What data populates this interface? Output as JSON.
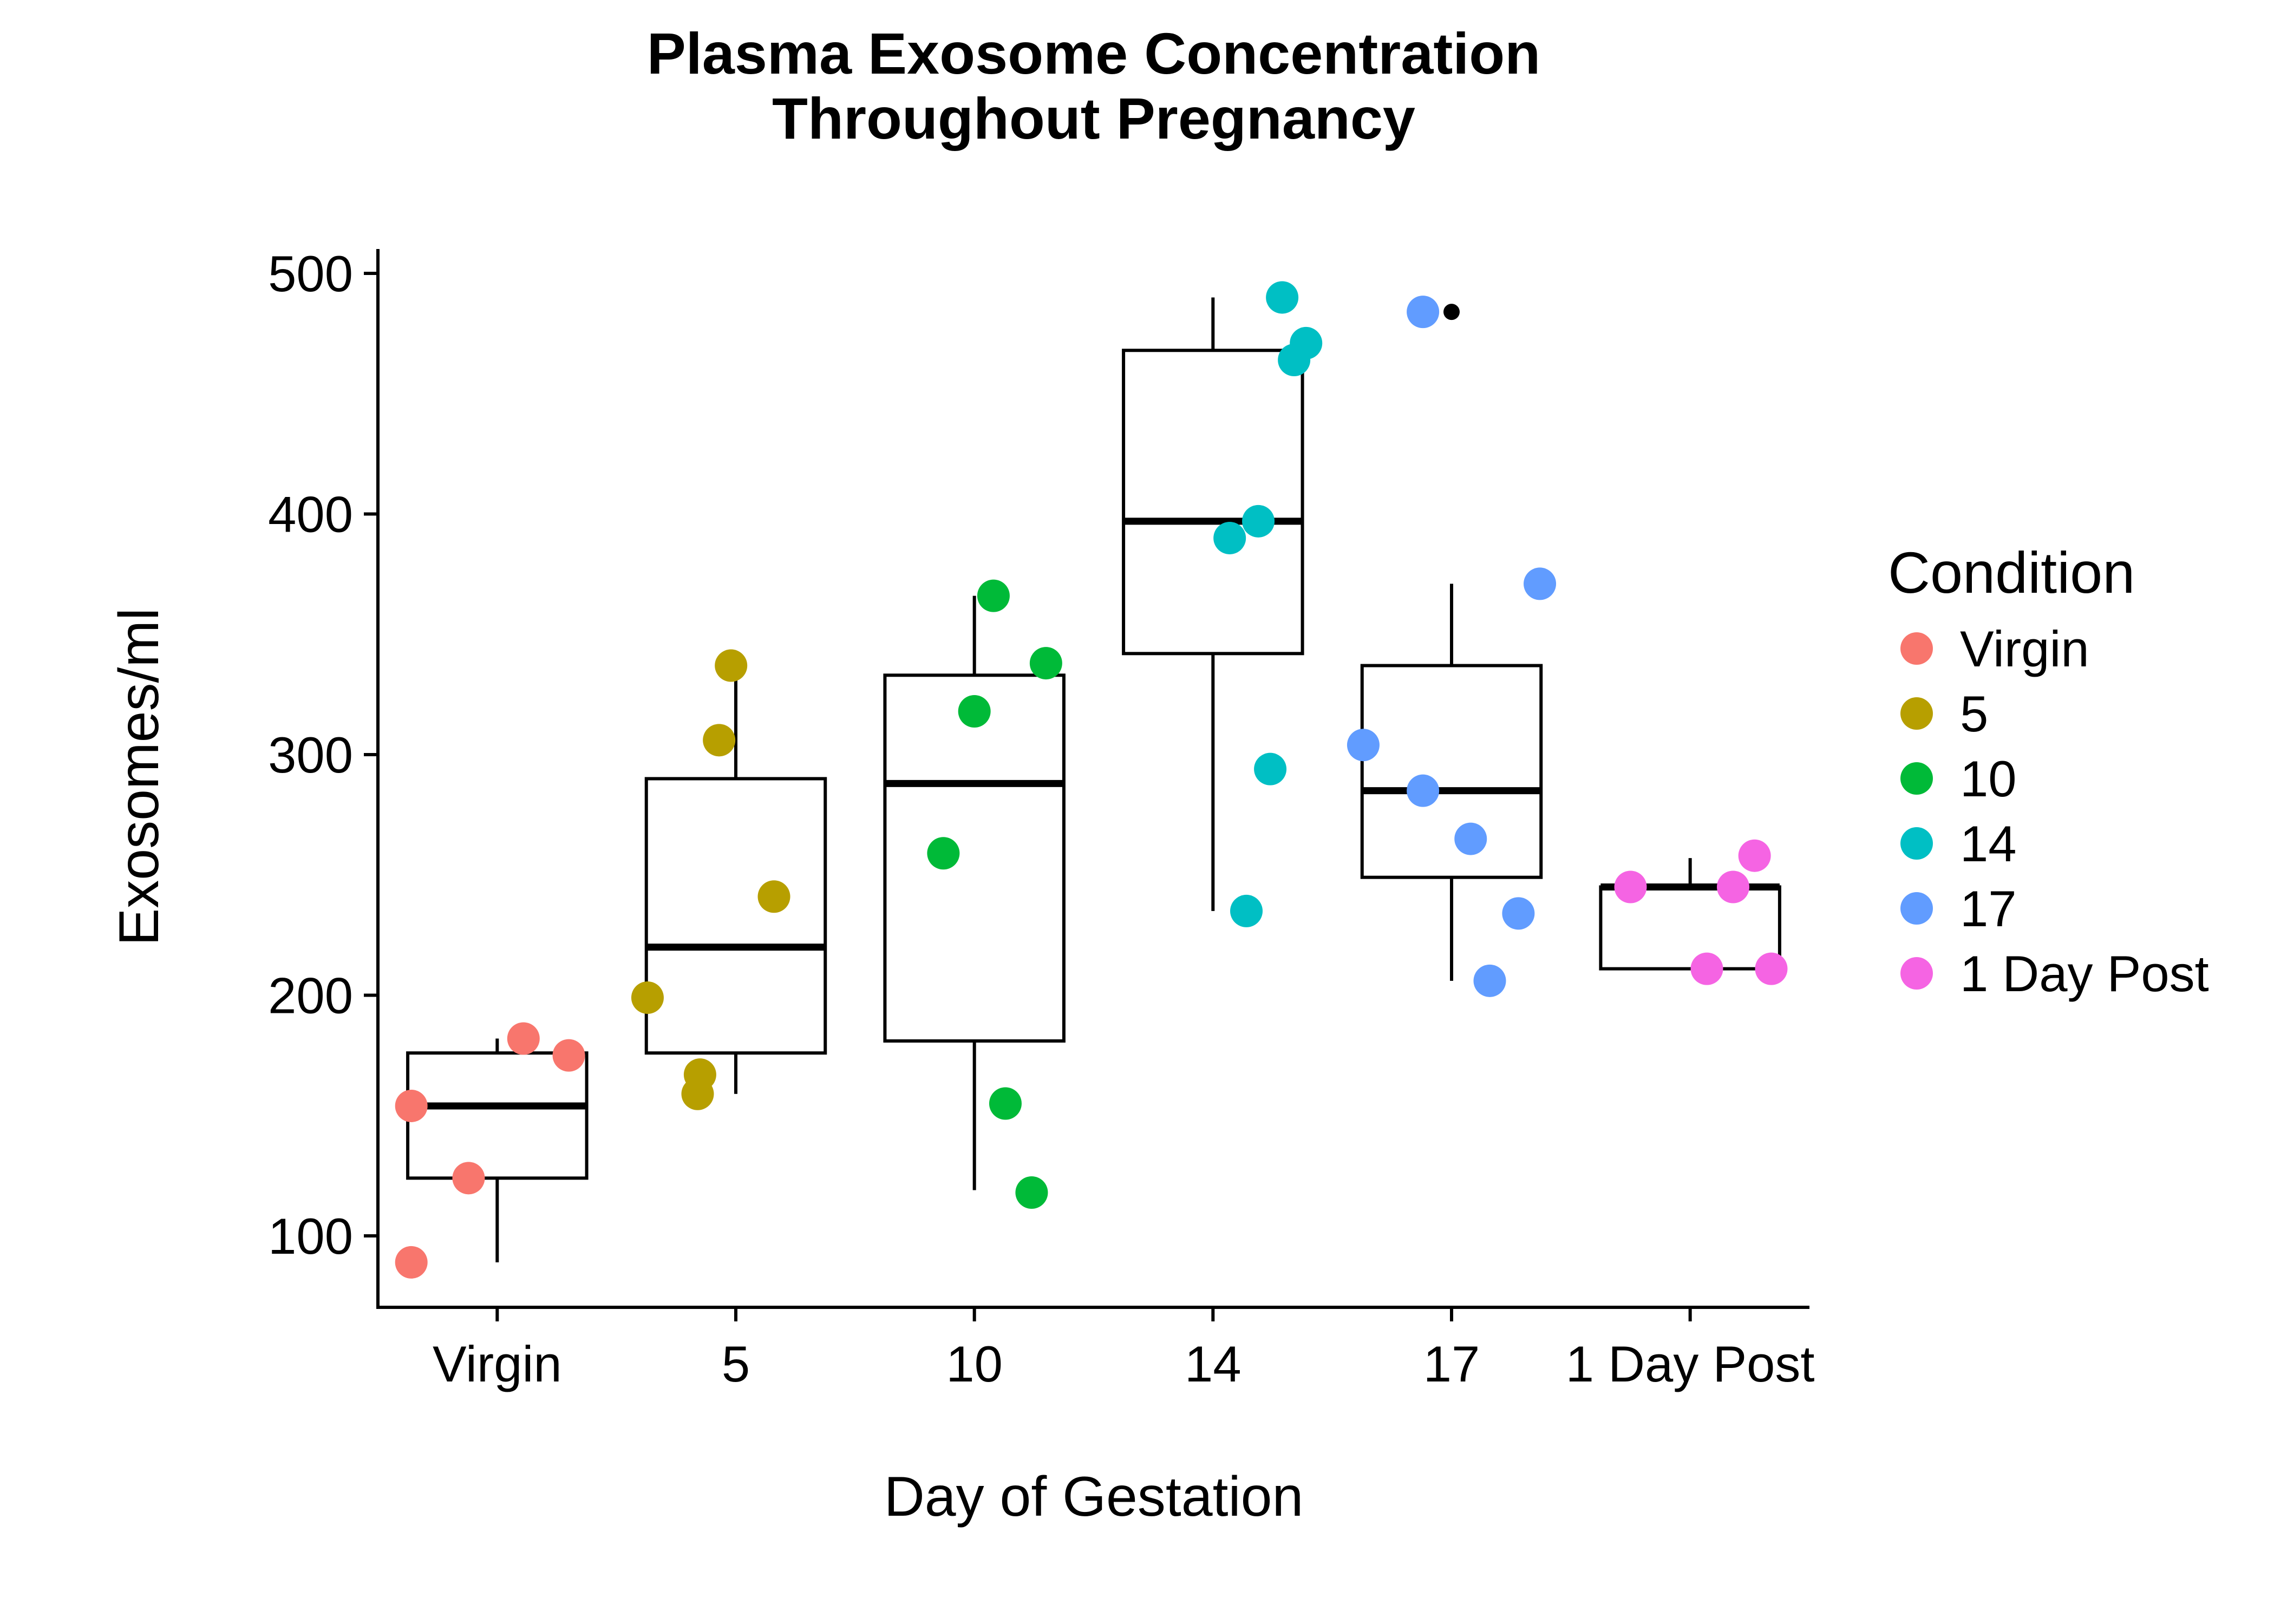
{
  "chart_data": {
    "type": "box",
    "title": [
      "Plasma Exosome Concentration",
      "Throughout Pregnancy"
    ],
    "xlabel": "Day of Gestation",
    "ylabel": "Exosomes/ml",
    "ylim": [
      70,
      510
    ],
    "yticks": [
      100,
      200,
      300,
      400,
      500
    ],
    "grid": false,
    "legend": {
      "title": "Condition",
      "position": "right"
    },
    "categories": [
      "Virgin",
      "5",
      "10",
      "14",
      "17",
      "1 Day Post"
    ],
    "colors": [
      "#F8766D",
      "#B79F00",
      "#00BA38",
      "#00BFC4",
      "#619CFF",
      "#F564E3"
    ],
    "boxes": [
      {
        "category": "Virgin",
        "whisker_low": 89,
        "q1": 124,
        "median": 154,
        "q3": 176,
        "whisker_high": 182,
        "outliers": []
      },
      {
        "category": "5",
        "whisker_low": 159,
        "q1": 176,
        "median": 220,
        "q3": 290,
        "whisker_high": 337,
        "outliers": []
      },
      {
        "category": "10",
        "whisker_low": 119,
        "q1": 181,
        "median": 288,
        "q3": 333,
        "whisker_high": 366,
        "outliers": []
      },
      {
        "category": "14",
        "whisker_low": 235,
        "q1": 342,
        "median": 397,
        "q3": 468,
        "whisker_high": 490,
        "outliers": []
      },
      {
        "category": "17",
        "whisker_low": 206,
        "q1": 249,
        "median": 285,
        "q3": 337,
        "whisker_high": 371,
        "outliers": [
          484
        ]
      },
      {
        "category": "1 Day Post",
        "whisker_low": 211,
        "q1": 211,
        "median": 245,
        "q3": 245,
        "whisker_high": 257,
        "outliers": []
      }
    ],
    "points": [
      {
        "category": "Virgin",
        "y": 89,
        "jitter": -0.36
      },
      {
        "category": "Virgin",
        "y": 124,
        "jitter": -0.12
      },
      {
        "category": "Virgin",
        "y": 154,
        "jitter": -0.36
      },
      {
        "category": "Virgin",
        "y": 175,
        "jitter": 0.3
      },
      {
        "category": "Virgin",
        "y": 182,
        "jitter": 0.11
      },
      {
        "category": "5",
        "y": 159,
        "jitter": -0.16
      },
      {
        "category": "5",
        "y": 167,
        "jitter": -0.15
      },
      {
        "category": "5",
        "y": 199,
        "jitter": -0.37
      },
      {
        "category": "5",
        "y": 241,
        "jitter": 0.16
      },
      {
        "category": "5",
        "y": 306,
        "jitter": -0.07
      },
      {
        "category": "5",
        "y": 337,
        "jitter": -0.02
      },
      {
        "category": "10",
        "y": 118,
        "jitter": 0.24
      },
      {
        "category": "10",
        "y": 155,
        "jitter": 0.13
      },
      {
        "category": "10",
        "y": 259,
        "jitter": -0.13
      },
      {
        "category": "10",
        "y": 318,
        "jitter": 0.0
      },
      {
        "category": "10",
        "y": 338,
        "jitter": 0.3
      },
      {
        "category": "10",
        "y": 366,
        "jitter": 0.08
      },
      {
        "category": "14",
        "y": 235,
        "jitter": 0.14
      },
      {
        "category": "14",
        "y": 294,
        "jitter": 0.24
      },
      {
        "category": "14",
        "y": 390,
        "jitter": 0.07
      },
      {
        "category": "14",
        "y": 397,
        "jitter": 0.19
      },
      {
        "category": "14",
        "y": 464,
        "jitter": 0.34
      },
      {
        "category": "14",
        "y": 471,
        "jitter": 0.39
      },
      {
        "category": "14",
        "y": 490,
        "jitter": 0.29
      },
      {
        "category": "17",
        "y": 206,
        "jitter": 0.16
      },
      {
        "category": "17",
        "y": 234,
        "jitter": 0.28
      },
      {
        "category": "17",
        "y": 265,
        "jitter": 0.08
      },
      {
        "category": "17",
        "y": 285,
        "jitter": -0.12
      },
      {
        "category": "17",
        "y": 304,
        "jitter": -0.37
      },
      {
        "category": "17",
        "y": 371,
        "jitter": 0.37
      },
      {
        "category": "17",
        "y": 484,
        "jitter": -0.12
      },
      {
        "category": "1 Day Post",
        "y": 211,
        "jitter": 0.07
      },
      {
        "category": "1 Day Post",
        "y": 211,
        "jitter": 0.34
      },
      {
        "category": "1 Day Post",
        "y": 245,
        "jitter": -0.25
      },
      {
        "category": "1 Day Post",
        "y": 245,
        "jitter": 0.18
      },
      {
        "category": "1 Day Post",
        "y": 258,
        "jitter": 0.27
      }
    ]
  }
}
